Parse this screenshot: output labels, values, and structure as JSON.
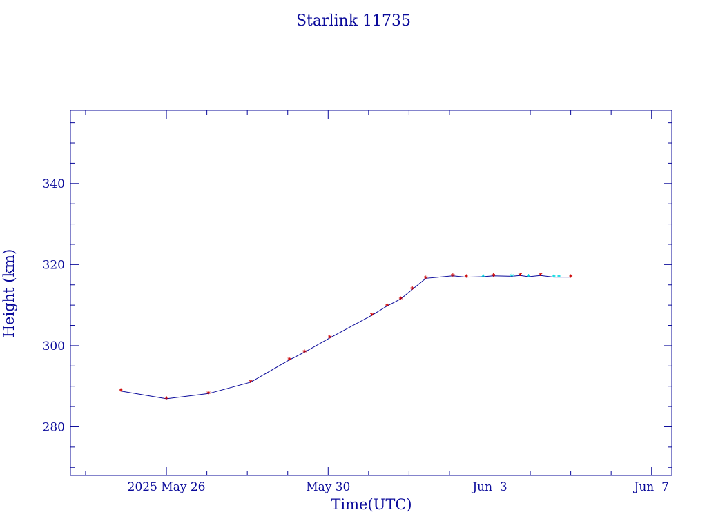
{
  "chart_data": {
    "type": "line",
    "title": "Starlink 11735",
    "xlabel": "Time(UTC)",
    "ylabel": "Height (km)",
    "x_unit": "date (UTC, 2025)",
    "xlim": [
      "2025-05-23T15:00",
      "2025-06-07T12:00"
    ],
    "ylim": [
      268,
      358
    ],
    "x_ticks": [
      {
        "value": "2025-05-26T00:00",
        "label": "2025 May 26"
      },
      {
        "value": "2025-05-30T00:00",
        "label": "May 30"
      },
      {
        "value": "2025-06-03T00:00",
        "label": "Jun  3"
      },
      {
        "value": "2025-06-07T00:00",
        "label": "Jun  7"
      }
    ],
    "y_ticks": [
      {
        "value": 280,
        "label": "280"
      },
      {
        "value": 300,
        "label": "300"
      },
      {
        "value": 320,
        "label": "320"
      },
      {
        "value": 340,
        "label": "340"
      }
    ],
    "grid": false,
    "colors": {
      "axis": "#0a0a9a",
      "line": "#0a0a9a",
      "marker_red": "#cc0000",
      "marker_cyan": "#00d8e0"
    },
    "series": [
      {
        "x": [
          "2025-05-24T21:00",
          "2025-05-26T00:00",
          "2025-05-27T01:00",
          "2025-05-28T02:00",
          "2025-05-29T01:00",
          "2025-05-29T10:00",
          "2025-05-30T01:00",
          "2025-05-31T02:00",
          "2025-05-31T11:00",
          "2025-05-31T19:00",
          "2025-06-01T02:00",
          "2025-06-01T10:00",
          "2025-06-02T02:00",
          "2025-06-02T10:00",
          "2025-06-02T20:00",
          "2025-06-03T02:00",
          "2025-06-03T13:00",
          "2025-06-03T18:00",
          "2025-06-03T23:00",
          "2025-06-04T06:00",
          "2025-06-04T14:00",
          "2025-06-04T17:00",
          "2025-06-05T00:00"
        ],
        "y": [
          288.8,
          286.9,
          288.2,
          291.0,
          296.5,
          298.4,
          301.9,
          307.5,
          309.8,
          311.5,
          313.9,
          316.6,
          317.2,
          316.9,
          317.0,
          317.2,
          317.1,
          317.3,
          317.0,
          317.3,
          316.9,
          316.9,
          316.9
        ],
        "marker_colors": [
          "red",
          "red",
          "red",
          "red",
          "red",
          "red",
          "red",
          "red",
          "red",
          "red",
          "red",
          "red",
          "red",
          "red",
          "cyan",
          "red",
          "cyan",
          "red",
          "cyan",
          "red",
          "cyan",
          "cyan",
          "red"
        ]
      }
    ]
  }
}
